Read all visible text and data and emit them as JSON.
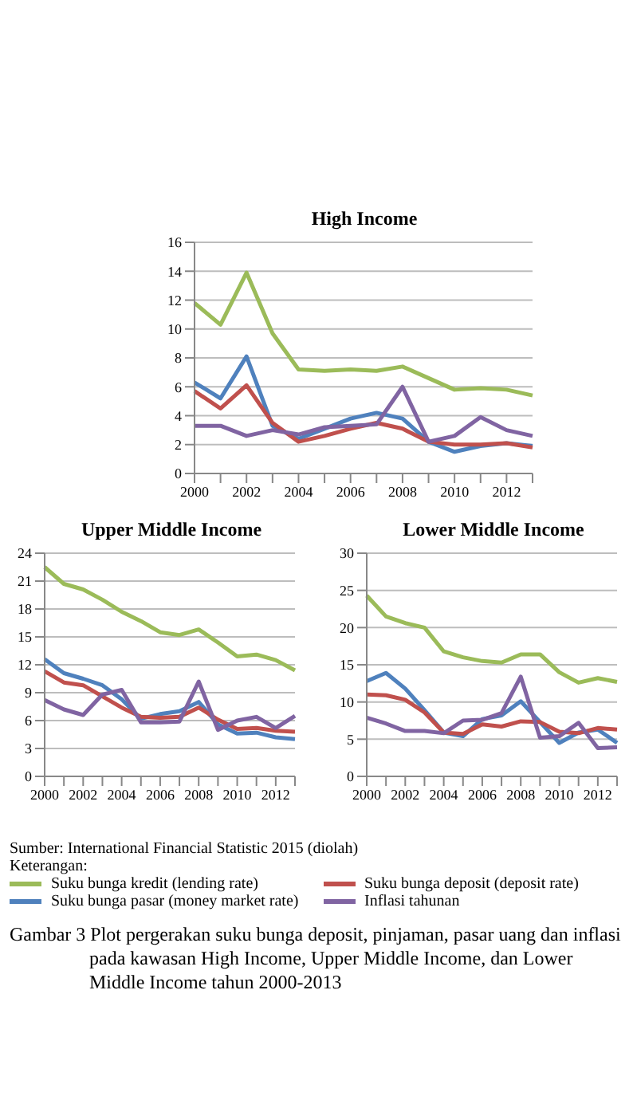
{
  "chart_data": [
    {
      "type": "line",
      "title": "High Income",
      "categories": [
        "2000",
        null,
        "2002",
        null,
        "2004",
        null,
        "2006",
        null,
        "2008",
        null,
        "2010",
        null,
        "2012",
        null
      ],
      "ylim": [
        0,
        16
      ],
      "yticks": [
        0,
        2,
        4,
        6,
        8,
        10,
        12,
        14,
        16
      ],
      "grid": "y",
      "series": [
        {
          "color": "#9bbb59",
          "values": [
            11.8,
            10.3,
            13.9,
            9.7,
            7.2,
            7.1,
            7.2,
            7.1,
            7.4,
            6.6,
            5.8,
            5.9,
            5.8,
            5.4
          ]
        },
        {
          "color": "#4f81bd",
          "values": [
            6.3,
            5.2,
            8.1,
            3.3,
            2.4,
            3.1,
            3.8,
            4.2,
            3.8,
            2.2,
            1.5,
            1.9,
            2.1,
            1.9
          ]
        },
        {
          "color": "#c0504d",
          "values": [
            5.7,
            4.5,
            6.1,
            3.5,
            2.2,
            2.6,
            3.1,
            3.5,
            3.1,
            2.2,
            2.0,
            2.0,
            2.1,
            1.8
          ]
        },
        {
          "color": "#8064a2",
          "values": [
            3.3,
            3.3,
            2.6,
            3.0,
            2.7,
            3.2,
            3.3,
            3.4,
            6.0,
            2.2,
            2.6,
            3.9,
            3.0,
            2.6
          ]
        }
      ]
    },
    {
      "type": "line",
      "title": "Upper Middle Income",
      "categories": [
        "2000",
        null,
        "2002",
        null,
        "2004",
        null,
        "2006",
        null,
        "2008",
        null,
        "2010",
        null,
        "2012",
        null
      ],
      "ylim": [
        0,
        24
      ],
      "yticks": [
        0,
        3,
        6,
        9,
        12,
        15,
        18,
        21,
        24
      ],
      "grid": "y",
      "series": [
        {
          "color": "#9bbb59",
          "values": [
            22.5,
            20.7,
            20.1,
            19.0,
            17.7,
            16.7,
            15.5,
            15.2,
            15.8,
            14.4,
            12.9,
            13.1,
            12.5,
            11.4
          ]
        },
        {
          "color": "#4f81bd",
          "values": [
            12.6,
            11.1,
            10.5,
            9.8,
            8.3,
            6.2,
            6.7,
            7.0,
            8.0,
            5.6,
            4.6,
            4.7,
            4.2,
            4.0
          ]
        },
        {
          "color": "#c0504d",
          "values": [
            11.3,
            10.1,
            9.8,
            8.6,
            7.4,
            6.4,
            6.3,
            6.4,
            7.4,
            6.1,
            5.1,
            5.2,
            4.9,
            4.8
          ]
        },
        {
          "color": "#8064a2",
          "values": [
            8.2,
            7.2,
            6.6,
            8.8,
            9.3,
            5.8,
            5.8,
            5.9,
            10.2,
            5.0,
            6.0,
            6.4,
            5.2,
            6.5
          ]
        }
      ]
    },
    {
      "type": "line",
      "title": "Lower Middle Income",
      "categories": [
        "2000",
        null,
        "2002",
        null,
        "2004",
        null,
        "2006",
        null,
        "2008",
        null,
        "2010",
        null,
        "2012",
        null
      ],
      "ylim": [
        0,
        30
      ],
      "yticks": [
        0,
        5,
        10,
        15,
        20,
        25,
        30
      ],
      "grid": "y",
      "legend": "bottom",
      "legend_title": "Keterangan:",
      "series": [
        {
          "name": "Suku bunga kredit (lending rate)",
          "color": "#9bbb59",
          "values": [
            24.3,
            21.5,
            20.6,
            20.0,
            16.8,
            16.0,
            15.5,
            15.3,
            16.4,
            16.4,
            14.0,
            12.6,
            13.2,
            12.7
          ]
        },
        {
          "name": "Suku bunga pasar (money market rate)",
          "color": "#4f81bd",
          "values": [
            12.8,
            13.9,
            11.8,
            8.9,
            5.9,
            5.4,
            7.7,
            8.2,
            10.1,
            7.3,
            4.5,
            5.9,
            6.3,
            4.5
          ]
        },
        {
          "name": "Suku bunga deposit (deposit rate)",
          "color": "#c0504d",
          "values": [
            11.0,
            10.9,
            10.3,
            8.6,
            5.9,
            5.7,
            7.0,
            6.7,
            7.4,
            7.3,
            6.0,
            5.8,
            6.5,
            6.3
          ]
        },
        {
          "name": "Inflasi tahunan",
          "color": "#8064a2",
          "values": [
            7.9,
            7.1,
            6.1,
            6.1,
            5.8,
            7.5,
            7.6,
            8.5,
            13.4,
            5.2,
            5.4,
            7.2,
            3.8,
            3.9
          ]
        }
      ],
      "annotations": [
        "Sumber: International Financial Statistic 2015 (diolah)",
        "Gambar 3  Plot pergerakan suku bunga deposit, pinjaman, pasar uang dan inflasi pada kawasan High Income, Upper Middle Income, dan Lower Middle Income tahun 2000-2013"
      ]
    }
  ]
}
